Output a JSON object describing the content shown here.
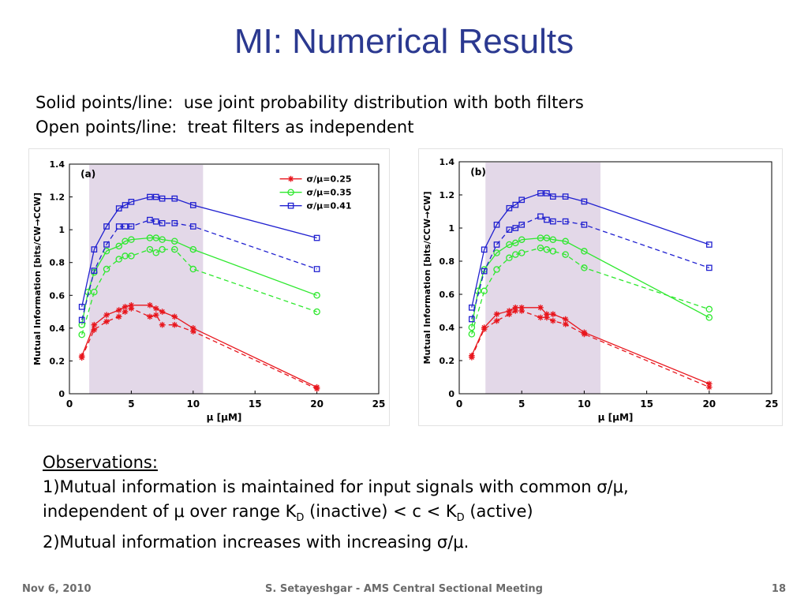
{
  "slide": {
    "title": "MI: Numerical Results",
    "subtitle_lines": [
      "Solid points/line:  use joint probability distribution with both filters",
      "Open points/line:  treat filters as independent"
    ]
  },
  "observations": {
    "heading": "Observations:",
    "item1_part1": "1)Mutual information is maintained for input signals with common σ/μ,",
    "item1_part2_prefix": "independent of μ over range K",
    "item1_sub1": "D",
    "item1_part2_mid": " (inactive) < c < K",
    "item1_sub2": "D",
    "item1_part2_suffix": " (active)",
    "item2": "2)Mutual information increases with increasing σ/μ."
  },
  "footer": {
    "date": "Nov 6, 2010",
    "author": "S. Setayeshgar - AMS Central Sectional Meeting",
    "page": "18"
  },
  "colors": {
    "title": "#2b3990",
    "red": "#e8161d",
    "green": "#2ee82e",
    "blue": "#2020d0",
    "shade": "#e3d8e8"
  },
  "chart_data": [
    {
      "type": "line",
      "panel_label": "(a)",
      "xlabel": "μ [μM]",
      "ylabel": "Mutual Information [bits/CW→CCW]",
      "xlim": [
        0,
        25
      ],
      "ylim": [
        0,
        1.4
      ],
      "xticks": [
        0,
        5,
        10,
        15,
        20,
        25
      ],
      "yticks": [
        0,
        0.2,
        0.4,
        0.6,
        0.8,
        1,
        1.2,
        1.4
      ],
      "shaded_range": [
        1.6,
        10.8
      ],
      "legend_position": "top-right",
      "legend": [
        "σ/μ=0.25",
        "σ/μ=0.35",
        "σ/μ=0.41"
      ],
      "series": [
        {
          "name": "σ/μ=0.25",
          "color": "red",
          "marker": "star",
          "style": "solid",
          "x": [
            1,
            2,
            3,
            4,
            4.5,
            5,
            6.5,
            7,
            7.5,
            8.5,
            10,
            20
          ],
          "y": [
            0.23,
            0.42,
            0.48,
            0.51,
            0.53,
            0.54,
            0.54,
            0.52,
            0.5,
            0.47,
            0.4,
            0.04
          ]
        },
        {
          "name": "σ/μ=0.25",
          "color": "red",
          "marker": "star",
          "style": "dashed",
          "x": [
            1,
            2,
            3,
            4,
            4.5,
            5,
            6.5,
            7,
            7.5,
            8.5,
            10,
            20
          ],
          "y": [
            0.22,
            0.39,
            0.44,
            0.47,
            0.5,
            0.52,
            0.47,
            0.48,
            0.42,
            0.42,
            0.38,
            0.03
          ]
        },
        {
          "name": "σ/μ=0.35",
          "color": "green",
          "marker": "circle",
          "style": "solid",
          "x": [
            1,
            1.5,
            2,
            3,
            4,
            4.5,
            5,
            6.5,
            7,
            7.5,
            8.5,
            10,
            20
          ],
          "y": [
            0.42,
            0.62,
            0.74,
            0.87,
            0.9,
            0.93,
            0.94,
            0.95,
            0.95,
            0.94,
            0.93,
            0.88,
            0.6
          ]
        },
        {
          "name": "σ/μ=0.35",
          "color": "green",
          "marker": "circle",
          "style": "dashed",
          "x": [
            1,
            2,
            3,
            4,
            4.5,
            5,
            6.5,
            7,
            7.5,
            8.5,
            10,
            20
          ],
          "y": [
            0.36,
            0.62,
            0.76,
            0.82,
            0.84,
            0.84,
            0.88,
            0.86,
            0.88,
            0.88,
            0.76,
            0.5
          ]
        },
        {
          "name": "σ/μ=0.41",
          "color": "blue",
          "marker": "square",
          "style": "solid",
          "x": [
            1,
            2,
            3,
            4,
            4.5,
            5,
            6.5,
            7,
            7.5,
            8.5,
            10,
            20
          ],
          "y": [
            0.53,
            0.88,
            1.02,
            1.13,
            1.15,
            1.17,
            1.2,
            1.2,
            1.19,
            1.19,
            1.15,
            0.95
          ]
        },
        {
          "name": "σ/μ=0.41",
          "color": "blue",
          "marker": "square",
          "style": "dashed",
          "x": [
            1,
            2,
            3,
            4,
            4.5,
            5,
            6.5,
            7,
            7.5,
            8.5,
            10,
            20
          ],
          "y": [
            0.45,
            0.75,
            0.91,
            1.02,
            1.02,
            1.02,
            1.06,
            1.05,
            1.04,
            1.04,
            1.02,
            0.76
          ]
        }
      ]
    },
    {
      "type": "line",
      "panel_label": "(b)",
      "xlabel": "μ [μM]",
      "ylabel": "Mutual Information [bits/CCW→CW]",
      "xlim": [
        0,
        25
      ],
      "ylim": [
        0,
        1.4
      ],
      "xticks": [
        0,
        5,
        10,
        15,
        20,
        25
      ],
      "yticks": [
        0,
        0.2,
        0.4,
        0.6,
        0.8,
        1,
        1.2,
        1.4
      ],
      "shaded_range": [
        2.1,
        11.3
      ],
      "series": [
        {
          "name": "σ/μ=0.25",
          "color": "red",
          "marker": "star",
          "style": "solid",
          "x": [
            1,
            2,
            3,
            4,
            4.5,
            5,
            6.5,
            7,
            7.5,
            8.5,
            10,
            20
          ],
          "y": [
            0.23,
            0.4,
            0.48,
            0.5,
            0.52,
            0.52,
            0.52,
            0.48,
            0.48,
            0.45,
            0.37,
            0.06
          ]
        },
        {
          "name": "σ/μ=0.25",
          "color": "red",
          "marker": "star",
          "style": "dashed",
          "x": [
            1,
            2,
            3,
            4,
            4.5,
            5,
            6.5,
            7,
            7.5,
            8.5,
            10,
            20
          ],
          "y": [
            0.22,
            0.39,
            0.44,
            0.48,
            0.5,
            0.5,
            0.46,
            0.46,
            0.44,
            0.42,
            0.36,
            0.04
          ]
        },
        {
          "name": "σ/μ=0.35",
          "color": "green",
          "marker": "circle",
          "style": "solid",
          "x": [
            1,
            1.5,
            2,
            3,
            4,
            4.5,
            5,
            6.5,
            7,
            7.5,
            8.5,
            10,
            20
          ],
          "y": [
            0.4,
            0.62,
            0.75,
            0.85,
            0.9,
            0.91,
            0.93,
            0.94,
            0.94,
            0.93,
            0.92,
            0.86,
            0.46
          ]
        },
        {
          "name": "σ/μ=0.35",
          "color": "green",
          "marker": "circle",
          "style": "dashed",
          "x": [
            1,
            2,
            3,
            4,
            4.5,
            5,
            6.5,
            7,
            7.5,
            8.5,
            10,
            20
          ],
          "y": [
            0.36,
            0.62,
            0.75,
            0.82,
            0.84,
            0.85,
            0.88,
            0.87,
            0.86,
            0.84,
            0.76,
            0.51
          ]
        },
        {
          "name": "σ/μ=0.41",
          "color": "blue",
          "marker": "square",
          "style": "solid",
          "x": [
            1,
            2,
            3,
            4,
            4.5,
            5,
            6.5,
            7,
            7.5,
            8.5,
            10,
            20
          ],
          "y": [
            0.52,
            0.87,
            1.02,
            1.12,
            1.14,
            1.17,
            1.21,
            1.21,
            1.19,
            1.19,
            1.16,
            0.9
          ]
        },
        {
          "name": "σ/μ=0.41",
          "color": "blue",
          "marker": "square",
          "style": "dashed",
          "x": [
            1,
            2,
            3,
            4,
            4.5,
            5,
            6.5,
            7,
            7.5,
            8.5,
            10,
            20
          ],
          "y": [
            0.45,
            0.74,
            0.9,
            0.99,
            1.0,
            1.02,
            1.07,
            1.05,
            1.04,
            1.04,
            1.02,
            0.76
          ]
        }
      ]
    }
  ]
}
